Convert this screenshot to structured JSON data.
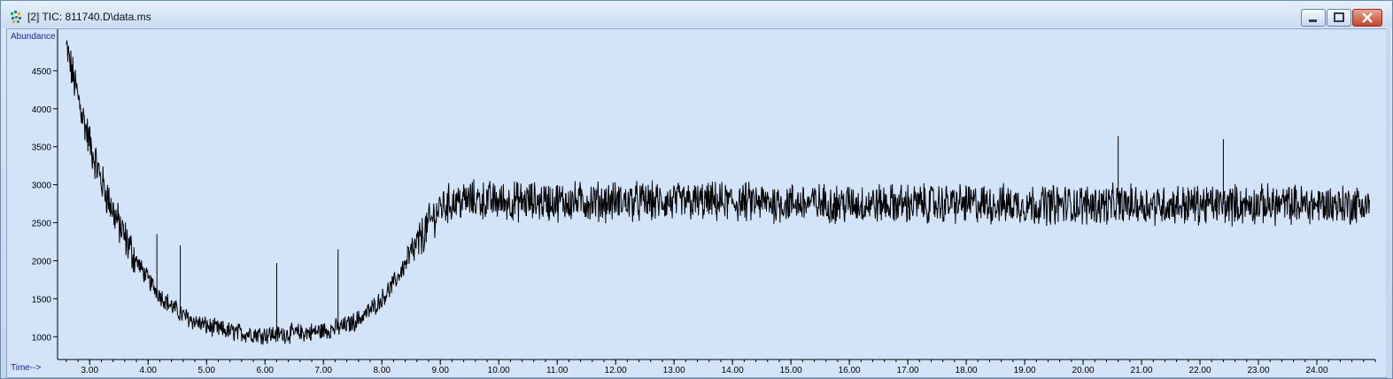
{
  "window": {
    "title": "[2] TIC: 811740.D\\data.ms",
    "icon": "chromatogram-app-icon",
    "controls": [
      "minimize-icon",
      "restore-icon",
      "close-icon"
    ]
  },
  "colors": {
    "plot_background": "#d3e4f9",
    "trace": "#000000",
    "axis_label": "#1a1ad0",
    "titlebar": "#d6e5f5"
  },
  "chart_data": {
    "type": "line",
    "title": "",
    "ylabel": "Abundance",
    "xlabel": "Time-->",
    "xlim": [
      2.45,
      25.0
    ],
    "ylim": [
      700,
      5000
    ],
    "y_ticks": [
      1000,
      1500,
      2000,
      2500,
      3000,
      3500,
      4000,
      4500
    ],
    "y_tick_labels": [
      "1000",
      "1500",
      "2000",
      "2500",
      "3000",
      "3500",
      "4000",
      "4500"
    ],
    "x_ticks": [
      3,
      4,
      5,
      6,
      7,
      8,
      9,
      10,
      11,
      12,
      13,
      14,
      15,
      16,
      17,
      18,
      19,
      20,
      21,
      22,
      23,
      24
    ],
    "x_tick_labels": [
      "3.00",
      "4.00",
      "5.00",
      "6.00",
      "7.00",
      "8.00",
      "9.00",
      "10.00",
      "11.00",
      "12.00",
      "13.00",
      "14.00",
      "15.00",
      "16.00",
      "17.00",
      "18.00",
      "19.00",
      "20.00",
      "21.00",
      "22.00",
      "23.00",
      "24.00"
    ],
    "grid": false,
    "legend": "none",
    "series": [
      {
        "x": [
          2.6,
          2.8,
          3.0,
          3.2,
          3.4,
          3.6,
          3.8,
          4.0,
          4.2,
          4.4,
          4.6,
          4.8,
          5.0,
          5.2,
          5.4,
          5.6,
          5.8,
          6.0,
          6.2,
          6.4,
          6.6,
          6.8,
          7.0,
          7.2,
          7.4,
          7.6,
          7.8,
          8.0,
          8.2,
          8.4,
          8.6,
          8.8,
          9.0,
          9.2,
          9.4,
          9.6,
          9.8,
          10.0,
          11.0,
          12.0,
          13.0,
          14.0,
          15.0,
          16.0,
          17.0,
          18.0,
          19.0,
          20.0,
          21.0,
          22.0,
          23.0,
          24.0,
          24.9
        ],
        "y": [
          4800,
          4150,
          3550,
          3050,
          2650,
          2300,
          2000,
          1750,
          1550,
          1400,
          1280,
          1200,
          1140,
          1100,
          1070,
          1050,
          1040,
          1030,
          1030,
          1040,
          1050,
          1060,
          1080,
          1110,
          1150,
          1230,
          1350,
          1500,
          1700,
          1950,
          2200,
          2480,
          2700,
          2770,
          2790,
          2800,
          2790,
          2780,
          2780,
          2780,
          2770,
          2770,
          2760,
          2750,
          2750,
          2750,
          2740,
          2740,
          2740,
          2740,
          2740,
          2740,
          2740
        ]
      }
    ],
    "spikes": [
      {
        "x": 4.15,
        "y": 2350
      },
      {
        "x": 4.55,
        "y": 2200
      },
      {
        "x": 6.2,
        "y": 1970
      },
      {
        "x": 7.25,
        "y": 2150
      },
      {
        "x": 20.6,
        "y": 3640
      },
      {
        "x": 22.4,
        "y": 3600
      }
    ]
  }
}
